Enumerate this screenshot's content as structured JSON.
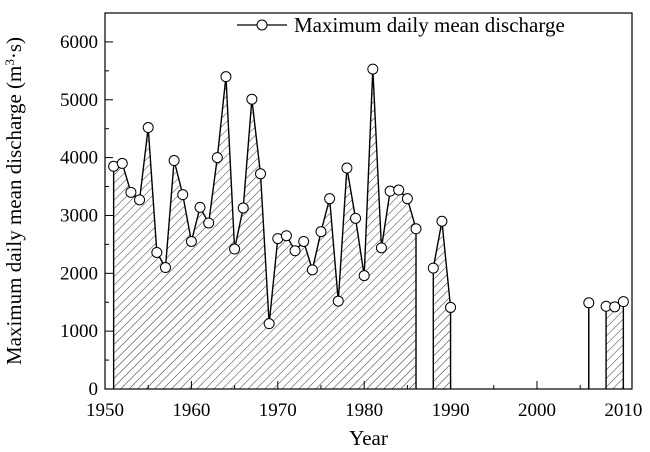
{
  "chart_data": {
    "type": "area",
    "title": "",
    "xlabel": "Year",
    "ylabel_main": "Maximum daily mean discharge (m",
    "ylabel_sup": "3",
    "ylabel_tail": "·s)",
    "xlim": [
      1950,
      2011
    ],
    "ylim": [
      0,
      6500
    ],
    "xticks": [
      1950,
      1960,
      1970,
      1980,
      1990,
      2000,
      2010
    ],
    "yticks": [
      0,
      1000,
      2000,
      3000,
      4000,
      5000,
      6000
    ],
    "grid": false,
    "legend_position": "top-right",
    "fill_pattern": "diagonal-hatch",
    "series": [
      {
        "name": "Maximum daily mean discharge",
        "segments": [
          {
            "x": [
              1951,
              1952,
              1953,
              1954,
              1955,
              1956,
              1957,
              1958,
              1959,
              1960,
              1961,
              1962,
              1963,
              1964,
              1965,
              1966,
              1967,
              1968,
              1969,
              1970,
              1971,
              1972,
              1973,
              1974,
              1975,
              1976,
              1977,
              1978,
              1979,
              1980,
              1981,
              1982,
              1983,
              1984,
              1985,
              1986
            ],
            "y": [
              3850,
              3900,
              3400,
              3270,
              4520,
              2360,
              2100,
              3950,
              3360,
              2550,
              3140,
              2870,
              4000,
              5400,
              2420,
              3130,
              5010,
              3720,
              1130,
              2600,
              2650,
              2390,
              2550,
              2060,
              2720,
              3290,
              1520,
              3820,
              2950,
              1960,
              5530,
              2440,
              3420,
              3440,
              3290,
              2770
            ]
          },
          {
            "x": [
              1988,
              1989,
              1990
            ],
            "y": [
              2090,
              2900,
              1410
            ]
          },
          {
            "x": [
              2006
            ],
            "y": [
              1490
            ]
          },
          {
            "x": [
              2008,
              2009,
              2010
            ],
            "y": [
              1430,
              1420,
              1510
            ]
          }
        ]
      }
    ]
  }
}
